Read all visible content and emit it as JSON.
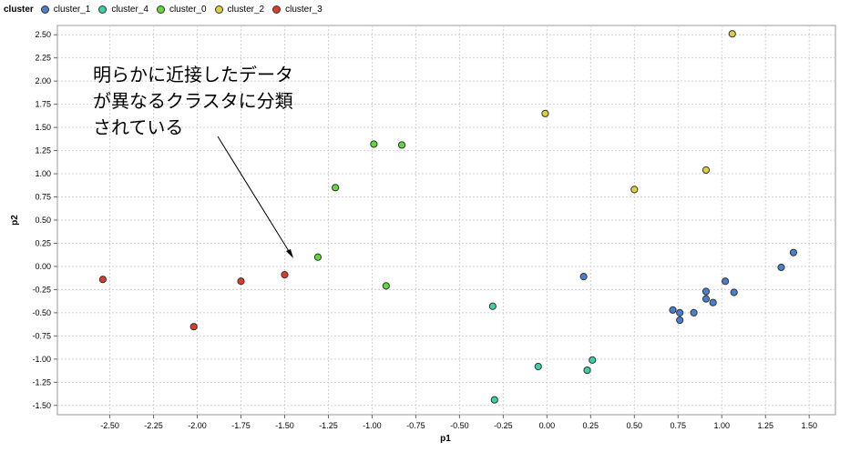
{
  "legend": {
    "title": "cluster",
    "items": [
      {
        "label": "cluster_1",
        "color": "#4a7ed1"
      },
      {
        "label": "cluster_4",
        "color": "#3ecfa8"
      },
      {
        "label": "cluster_0",
        "color": "#5fd93a"
      },
      {
        "label": "cluster_2",
        "color": "#ddd03c"
      },
      {
        "label": "cluster_3",
        "color": "#dd3b2f"
      }
    ]
  },
  "annotation": {
    "lines": [
      "明らかに近接したデータ",
      "が異なるクラスタに分類",
      "されている"
    ]
  },
  "chart_data": {
    "type": "scatter",
    "xlabel": "p1",
    "ylabel": "p2",
    "xlim": [
      -2.8,
      1.65
    ],
    "ylim": [
      -1.6,
      2.6
    ],
    "xticks": [
      "-2.50",
      "-2.25",
      "-2.00",
      "-1.75",
      "-1.50",
      "-1.25",
      "-1.00",
      "-0.75",
      "-0.50",
      "-0.25",
      "0.00",
      "0.25",
      "0.50",
      "0.75",
      "1.00",
      "1.25",
      "1.50"
    ],
    "yticks": [
      "2.50",
      "2.25",
      "2.00",
      "1.75",
      "1.50",
      "1.25",
      "1.00",
      "0.75",
      "0.50",
      "0.25",
      "0.00",
      "-0.25",
      "-0.50",
      "-0.75",
      "-1.00",
      "-1.25",
      "-1.50"
    ],
    "grid": true,
    "legend_position": "top-left",
    "series": [
      {
        "name": "cluster_1",
        "color": "#4a7ed1",
        "points": [
          [
            0.21,
            -0.11
          ],
          [
            0.72,
            -0.47
          ],
          [
            0.76,
            -0.5
          ],
          [
            0.76,
            -0.58
          ],
          [
            0.84,
            -0.5
          ],
          [
            0.91,
            -0.27
          ],
          [
            0.91,
            -0.35
          ],
          [
            0.95,
            -0.39
          ],
          [
            1.02,
            -0.16
          ],
          [
            1.07,
            -0.28
          ],
          [
            1.34,
            -0.01
          ],
          [
            1.41,
            0.15
          ]
        ]
      },
      {
        "name": "cluster_4",
        "color": "#3ecfa8",
        "points": [
          [
            -0.31,
            -0.43
          ],
          [
            -0.3,
            -1.44
          ],
          [
            -0.05,
            -1.08
          ],
          [
            0.23,
            -1.12
          ],
          [
            0.26,
            -1.01
          ]
        ]
      },
      {
        "name": "cluster_0",
        "color": "#5fd93a",
        "points": [
          [
            -1.31,
            0.1
          ],
          [
            -1.21,
            0.85
          ],
          [
            -0.99,
            1.32
          ],
          [
            -0.92,
            -0.21
          ],
          [
            -0.83,
            1.31
          ]
        ]
      },
      {
        "name": "cluster_2",
        "color": "#ddd03c",
        "points": [
          [
            -0.01,
            1.65
          ],
          [
            0.5,
            0.83
          ],
          [
            0.91,
            1.04
          ],
          [
            1.06,
            2.51
          ]
        ]
      },
      {
        "name": "cluster_3",
        "color": "#dd3b2f",
        "points": [
          [
            -2.54,
            -0.14
          ],
          [
            -2.02,
            -0.65
          ],
          [
            -1.75,
            -0.16
          ],
          [
            -1.5,
            -0.09
          ]
        ]
      }
    ]
  }
}
